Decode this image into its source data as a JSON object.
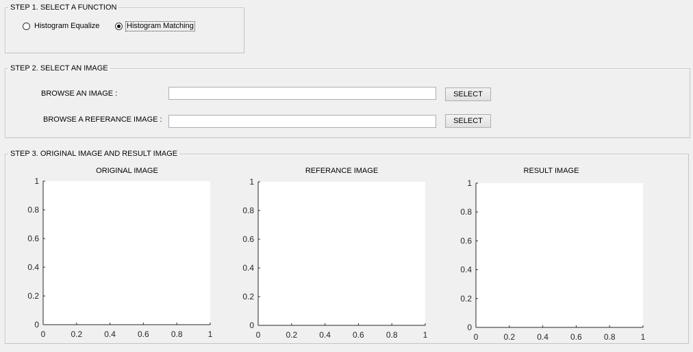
{
  "step1": {
    "legend": "STEP 1. SELECT A FUNCTION",
    "options": [
      {
        "label": "Histogram Equalize",
        "checked": false
      },
      {
        "label": "Histogram Matching",
        "checked": true
      }
    ]
  },
  "step2": {
    "legend": "STEP 2. SELECT AN IMAGE",
    "browse_image_label": "BROWSE AN IMAGE :",
    "browse_image_value": "",
    "browse_reference_label": "BROWSE A REFERANCE IMAGE :",
    "browse_reference_value": "",
    "select_label": "SELECT"
  },
  "step3": {
    "legend": "STEP 3. ORIGINAL IMAGE AND RESULT IMAGE",
    "axes": [
      {
        "title": "ORIGINAL IMAGE"
      },
      {
        "title": "REFERANCE IMAGE"
      },
      {
        "title": "RESULT IMAGE"
      }
    ]
  },
  "chart_data": [
    {
      "type": "scatter",
      "title": "ORIGINAL IMAGE",
      "x": [],
      "y": [],
      "xlim": [
        0,
        1
      ],
      "ylim": [
        0,
        1
      ],
      "xticks": [
        "0",
        "0.2",
        "0.4",
        "0.6",
        "0.8",
        "1"
      ],
      "yticks": [
        "0",
        "0.2",
        "0.4",
        "0.6",
        "0.8",
        "1"
      ]
    },
    {
      "type": "scatter",
      "title": "REFERANCE IMAGE",
      "x": [],
      "y": [],
      "xlim": [
        0,
        1
      ],
      "ylim": [
        0,
        1
      ],
      "xticks": [
        "0",
        "0.2",
        "0.4",
        "0.6",
        "0.8",
        "1"
      ],
      "yticks": [
        "0",
        "0.2",
        "0.4",
        "0.6",
        "0.8",
        "1"
      ]
    },
    {
      "type": "scatter",
      "title": "RESULT IMAGE",
      "x": [],
      "y": [],
      "xlim": [
        0,
        1
      ],
      "ylim": [
        0,
        1
      ],
      "xticks": [
        "0",
        "0.2",
        "0.4",
        "0.6",
        "0.8",
        "1"
      ],
      "yticks": [
        "0",
        "0.2",
        "0.4",
        "0.6",
        "0.8",
        "1"
      ]
    }
  ]
}
